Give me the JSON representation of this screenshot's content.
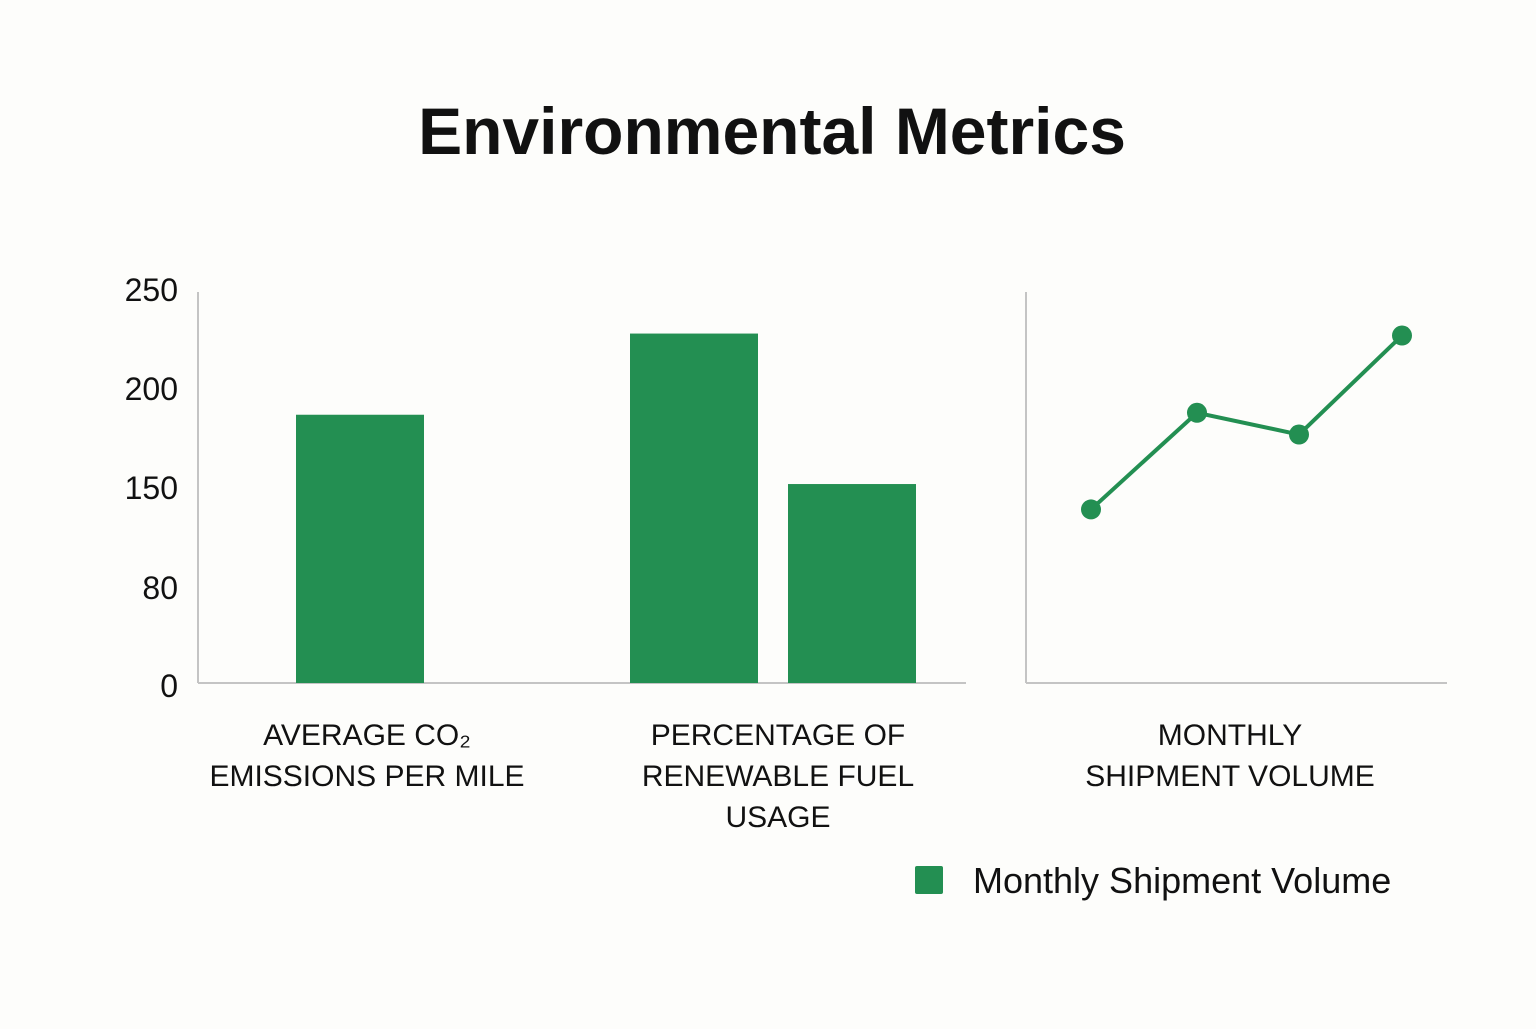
{
  "chart_data": {
    "type": "bar",
    "title": "Environmental Metrics",
    "y_ticks": [
      250,
      200,
      150,
      80,
      0
    ],
    "ylim": [
      0,
      250
    ],
    "grid": false,
    "color": "#238f52",
    "axis_color": "#c4c4c4",
    "bar_panel": {
      "categories": [
        {
          "lines": [
            "AVERAGE CO₂",
            "EMISSIONS PER MILE"
          ],
          "values": [
            187
          ]
        },
        {
          "lines": [
            "PERCENTAGE OF",
            "RENEWABLE FUEL",
            "USAGE"
          ],
          "values": [
            228,
            152
          ]
        }
      ]
    },
    "line_panel": {
      "type": "line",
      "category": {
        "lines": [
          "MONTHLY",
          "SHIPMENT VOLUME"
        ]
      },
      "values": [
        135,
        188,
        177,
        227
      ]
    },
    "legend": {
      "label": "Monthly Shipment Volume",
      "placement": "bottom-right"
    }
  }
}
